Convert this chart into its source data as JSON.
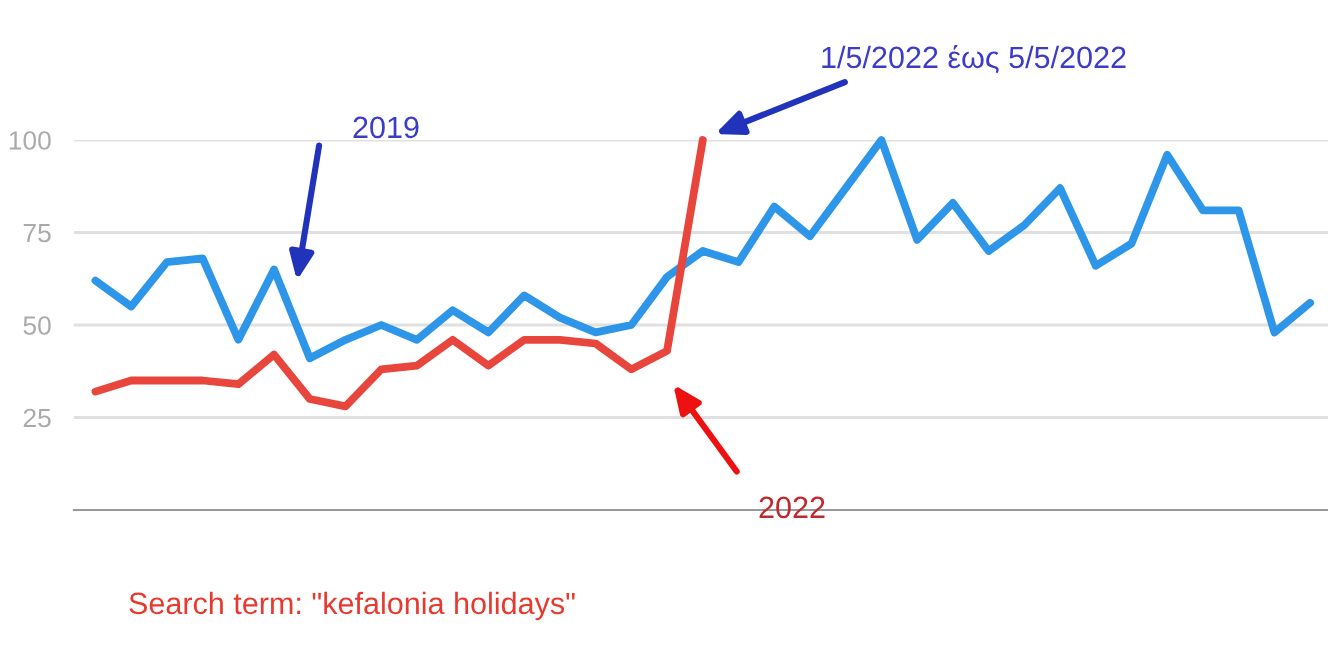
{
  "chart_data": {
    "type": "line",
    "categories": [
      null,
      null,
      null,
      null,
      null,
      null,
      null,
      null,
      null,
      null,
      null,
      null,
      null,
      null,
      null,
      null,
      null,
      null,
      null,
      null,
      null,
      null,
      null,
      null,
      null,
      null,
      null,
      null,
      null,
      null,
      null,
      null,
      null,
      null,
      null
    ],
    "series": [
      {
        "color": "#2e96e8",
        "values": [
          62,
          55,
          67,
          68,
          46,
          65,
          41,
          46,
          50,
          46,
          54,
          48,
          58,
          52,
          48,
          50,
          63,
          70,
          67,
          82,
          74,
          87,
          100,
          73,
          83,
          70,
          77,
          87,
          66,
          72,
          96,
          81,
          81,
          48,
          56
        ]
      },
      {
        "color": "#e8453c",
        "values": [
          32,
          35,
          35,
          35,
          34,
          42,
          30,
          28,
          38,
          39,
          46,
          39,
          46,
          46,
          45,
          38,
          43,
          100,
          null,
          null,
          null,
          null,
          null,
          null,
          null,
          null,
          null,
          null,
          null,
          null,
          null,
          null,
          null,
          null,
          null
        ]
      }
    ],
    "ylim": [
      0,
      100
    ],
    "yticks": [
      25,
      50,
      75,
      100
    ],
    "grid": "y",
    "legend": false,
    "marker": "none",
    "line_style": "solid",
    "annotations": [
      "2019",
      "1/5/2022 έως 5/5/2022",
      "2022",
      "Search term: \"kefalonia holidays\""
    ]
  }
}
